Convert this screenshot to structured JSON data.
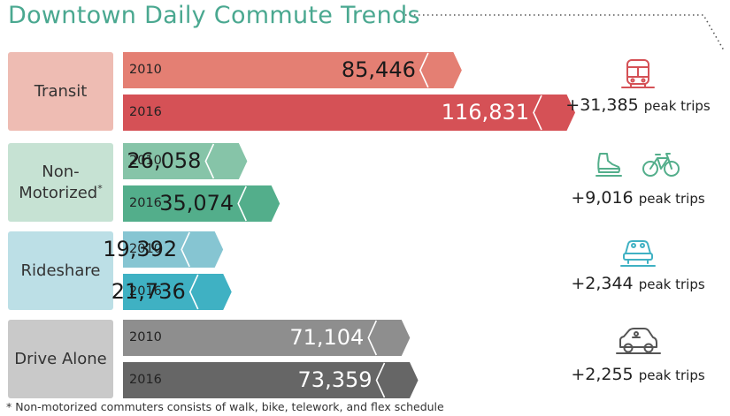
{
  "title": "Downtown Daily Commute Trends",
  "footnote": "* Non-motorized commuters consists of walk, bike, telework, and flex schedule",
  "chart_data": {
    "type": "bar",
    "orientation": "horizontal",
    "title": "Downtown Daily Commute Trends",
    "categories": [
      "Transit",
      "Non-Motorized*",
      "Rideshare",
      "Drive Alone"
    ],
    "series": [
      {
        "name": "2010",
        "values": [
          85446,
          26058,
          19392,
          71104
        ]
      },
      {
        "name": "2016",
        "values": [
          116831,
          35074,
          21736,
          73359
        ]
      }
    ],
    "groups": [
      {
        "label_lines": [
          "Transit"
        ],
        "footnote_mark": "",
        "change": "+31,385",
        "change_unit": "peak trips",
        "icons": [
          "bus-icon"
        ],
        "colors": {
          "box": "#eebcb3",
          "bar2010": "#e47f73",
          "bar2016": "#d55156",
          "val2010": "#1a1a1a",
          "val2016": "#ffffff"
        },
        "bars": [
          {
            "year": "2010",
            "value": 85446,
            "label": "85,446"
          },
          {
            "year": "2016",
            "value": 116831,
            "label": "116,831"
          }
        ]
      },
      {
        "label_lines": [
          "Non-",
          "Motorized"
        ],
        "footnote_mark": "*",
        "change": "+9,016",
        "change_unit": "peak trips",
        "icons": [
          "walking-shoe-icon",
          "bicycle-icon"
        ],
        "colors": {
          "box": "#c6e2d3",
          "bar2010": "#86c4a8",
          "bar2016": "#53ae8b",
          "val2010": "#1a1a1a",
          "val2016": "#1a1a1a"
        },
        "bars": [
          {
            "year": "2010",
            "value": 26058,
            "label": "26,058"
          },
          {
            "year": "2016",
            "value": 35074,
            "label": "35,074"
          }
        ]
      },
      {
        "label_lines": [
          "Rideshare"
        ],
        "footnote_mark": "",
        "change": "+2,344",
        "change_unit": "peak trips",
        "icons": [
          "carpool-icon"
        ],
        "colors": {
          "box": "#bcdfe6",
          "bar2010": "#86c5d2",
          "bar2016": "#3fb1c3",
          "val2010": "#1a1a1a",
          "val2016": "#1a1a1a"
        },
        "bars": [
          {
            "year": "2010",
            "value": 19392,
            "label": "19,392"
          },
          {
            "year": "2016",
            "value": 21736,
            "label": "21,736"
          }
        ]
      },
      {
        "label_lines": [
          "Drive Alone"
        ],
        "footnote_mark": "",
        "change": "+2,255",
        "change_unit": "peak trips",
        "icons": [
          "car-icon"
        ],
        "colors": {
          "box": "#c9c9c9",
          "bar2010": "#8e8e8e",
          "bar2016": "#666666",
          "val2010": "#ffffff",
          "val2016": "#ffffff"
        },
        "bars": [
          {
            "year": "2010",
            "value": 71104,
            "label": "71,104"
          },
          {
            "year": "2016",
            "value": 73359,
            "label": "73,359"
          }
        ]
      }
    ]
  }
}
